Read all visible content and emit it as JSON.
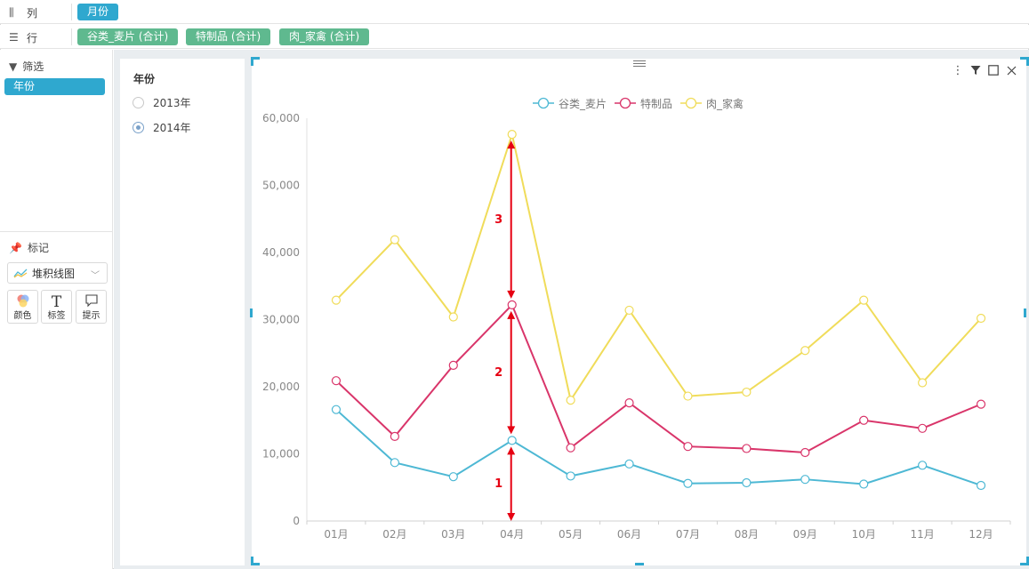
{
  "shelves": {
    "columns": {
      "label": "列",
      "pills": [
        "月份"
      ]
    },
    "rows": {
      "label": "行",
      "pills": [
        "谷类_麦片 (合计)",
        "特制品 (合计)",
        "肉_家禽 (合计)"
      ]
    }
  },
  "filter_panel": {
    "title": "筛选",
    "items": [
      "年份"
    ]
  },
  "marks_panel": {
    "title": "标记",
    "mark_type": "堆积线图",
    "buttons": [
      {
        "label": "颜色",
        "icon": "color-palette-icon"
      },
      {
        "label": "标签",
        "icon": "text-label-icon"
      },
      {
        "label": "提示",
        "icon": "tooltip-bubble-icon"
      }
    ]
  },
  "year_filter": {
    "title": "年份",
    "options": [
      {
        "label": "2013年",
        "selected": false
      },
      {
        "label": "2014年",
        "selected": true
      }
    ]
  },
  "chart_data": {
    "type": "line",
    "stacked": true,
    "categories": [
      "01月",
      "02月",
      "03月",
      "04月",
      "05月",
      "06月",
      "07月",
      "08月",
      "09月",
      "10月",
      "11月",
      "12月"
    ],
    "yticks": [
      "0",
      "10,000",
      "20,000",
      "30,000",
      "40,000",
      "50,000",
      "60,000"
    ],
    "ylim": [
      0,
      60000
    ],
    "legend_position": "top-center",
    "series": [
      {
        "name": "谷类_麦片",
        "color": "#4db8d4",
        "values": [
          16600,
          8700,
          6600,
          12000,
          6700,
          8500,
          5600,
          5700,
          6200,
          5500,
          8300,
          5300
        ]
      },
      {
        "name": "特制品",
        "color": "#d9356a",
        "values": [
          20900,
          12600,
          23200,
          32200,
          10900,
          17600,
          11100,
          10800,
          10200,
          15000,
          13800,
          17400
        ]
      },
      {
        "name": "肉_家禽",
        "color": "#f0dc5a",
        "values": [
          32900,
          41900,
          30400,
          57600,
          18000,
          31400,
          18600,
          19200,
          25400,
          32900,
          20600,
          30200
        ]
      }
    ],
    "annotations": [
      {
        "label": "1",
        "category": "04月",
        "from": 0,
        "to": 12000
      },
      {
        "label": "2",
        "category": "04月",
        "from": 12000,
        "to": 32200
      },
      {
        "label": "3",
        "category": "04月",
        "from": 32200,
        "to": 57600
      }
    ],
    "annotation_color": "#e60012"
  }
}
